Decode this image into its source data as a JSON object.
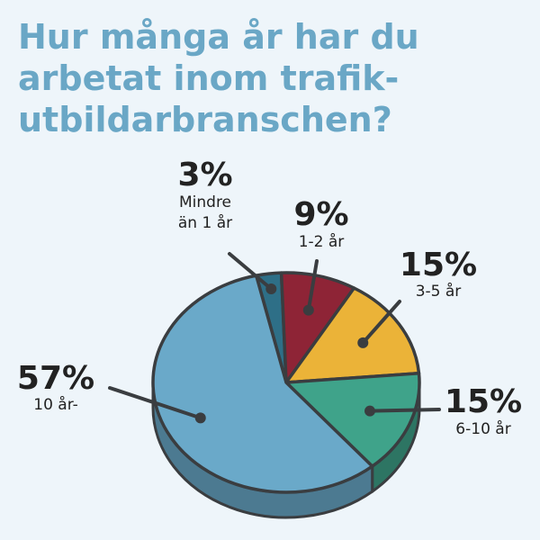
{
  "title_lines": [
    "Hur många år har du",
    "arbetat inom trafik-",
    "utbildarbranschen?"
  ],
  "chart_data": {
    "type": "pie",
    "title": "Hur många år har du arbetat inom trafikutbildarbranschen?",
    "slices": [
      {
        "value": 3,
        "pct_label": "3%",
        "label_lines": [
          "Mindre",
          "än 1 år"
        ],
        "color": "#2e6f87"
      },
      {
        "value": 9,
        "pct_label": "9%",
        "label_lines": [
          "1-2 år"
        ],
        "color": "#8e2436"
      },
      {
        "value": 15,
        "pct_label": "15%",
        "label_lines": [
          "3-5 år"
        ],
        "color": "#ebb338"
      },
      {
        "value": 15,
        "pct_label": "15%",
        "label_lines": [
          "6-10 år"
        ],
        "color": "#3fa38a"
      },
      {
        "value": 57,
        "pct_label": "57%",
        "label_lines": [
          "10 år-"
        ],
        "color": "#6aa9c9"
      }
    ]
  }
}
